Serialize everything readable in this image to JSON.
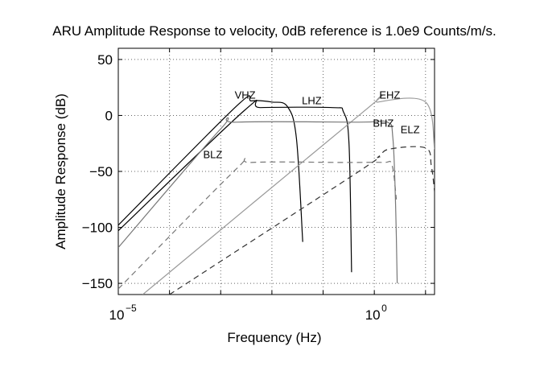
{
  "chart_data": {
    "type": "line",
    "title": "ARU Amplitude Response to velocity, 0dB reference is 1.0e9 Counts/m/s.",
    "xlabel": "Frequency (Hz)",
    "ylabel": "Amplitude Response (dB)",
    "x_scale": "log",
    "xlim": [
      1e-05,
      15
    ],
    "ylim": [
      -160,
      60
    ],
    "grid": true,
    "xticks": [
      {
        "value": 1e-05,
        "base": "10",
        "exp": "−5"
      },
      {
        "value": 1,
        "base": "10",
        "exp": "0"
      }
    ],
    "yticks": [
      {
        "value": 50,
        "label": "50"
      },
      {
        "value": 0,
        "label": "0"
      },
      {
        "value": -50,
        "label": "−50"
      },
      {
        "value": -100,
        "label": "−100"
      },
      {
        "value": -150,
        "label": "−150"
      }
    ],
    "series": [
      {
        "name": "VHZ",
        "color": "#000000",
        "dash": "",
        "label_at": [
          0.003,
          15
        ],
        "points": [
          [
            1e-05,
            -98
          ],
          [
            0.002,
            8
          ],
          [
            0.004,
            13
          ],
          [
            0.01,
            12
          ],
          [
            0.02,
            8
          ],
          [
            0.03,
            -20
          ],
          [
            0.04,
            -113
          ]
        ]
      },
      {
        "name": "LHZ",
        "color": "#000000",
        "dash": "",
        "label_at": [
          0.06,
          10
        ],
        "points": [
          [
            1e-05,
            -103
          ],
          [
            0.003,
            5
          ],
          [
            0.006,
            7
          ],
          [
            0.15,
            7
          ],
          [
            0.25,
            3
          ],
          [
            0.32,
            -25
          ],
          [
            0.36,
            -140
          ]
        ]
      },
      {
        "name": "BLZ",
        "color": "#777777",
        "dash": "7,5",
        "label_at": [
          0.0007,
          -38
        ],
        "points": [
          [
            1e-05,
            -155
          ],
          [
            0.002,
            -48
          ],
          [
            0.004,
            -42
          ],
          [
            0.3,
            -42
          ],
          [
            1.5,
            -42
          ],
          [
            2.2,
            -44
          ],
          [
            2.7,
            -75
          ]
        ]
      },
      {
        "name": "EHZ",
        "color": "#999999",
        "dash": "",
        "label_at": [
          2,
          15
        ],
        "points": [
          [
            3e-05,
            -160
          ],
          [
            0.6,
            3
          ],
          [
            1.2,
            12
          ],
          [
            10,
            12
          ],
          [
            15,
            -30
          ]
        ]
      },
      {
        "name": "BHZ",
        "color": "#777777",
        "dash": "",
        "label_at": [
          1.5,
          -10
        ],
        "points": [
          [
            1e-05,
            -118
          ],
          [
            0.001,
            -12
          ],
          [
            0.002,
            -6
          ],
          [
            0.5,
            -6
          ],
          [
            1.8,
            -6
          ],
          [
            2.3,
            -20
          ],
          [
            2.6,
            -80
          ],
          [
            2.8,
            -150
          ]
        ]
      },
      {
        "name": "ELZ",
        "color": "#333333",
        "dash": "7,5",
        "label_at": [
          5,
          -16
        ],
        "points": [
          [
            0.0001,
            -160
          ],
          [
            0.5,
            -50
          ],
          [
            1.2,
            -37
          ],
          [
            2,
            -30
          ],
          [
            10,
            -29
          ],
          [
            13,
            -45
          ],
          [
            15,
            -68
          ]
        ]
      }
    ]
  }
}
